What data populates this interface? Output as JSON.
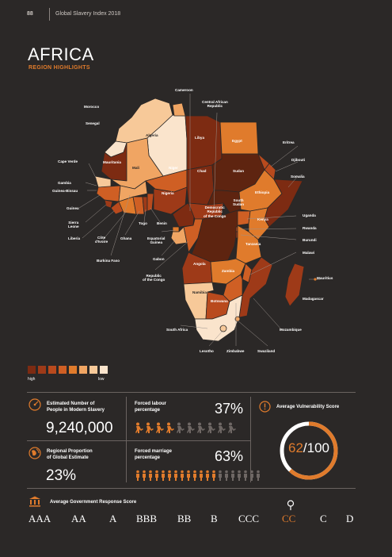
{
  "header": {
    "page_number": "88",
    "publication": "Global Slavery Index 2018"
  },
  "title": "AFRICA",
  "subtitle": "REGION HIGHLIGHTS",
  "legend": {
    "colors": [
      "#7d2b12",
      "#9e3a18",
      "#b94a1d",
      "#cf5f24",
      "#e07b2c",
      "#f0a563",
      "#f7c999",
      "#fae4cc"
    ],
    "high": "high",
    "low": "low"
  },
  "map_labels": {
    "cameroon": "Cameroon",
    "car": "Central African\nRepublic",
    "morocco": "Morocco",
    "senegal": "Senegal",
    "algeria": "Algeria",
    "libya": "Libya",
    "egypt": "Egypt",
    "eritrea": "Eritrea",
    "cape_verde": "Cape Verde",
    "mauritania": "Mauritania",
    "mali": "Mali",
    "niger": "Niger",
    "chad": "Chad",
    "sudan": "Sudan",
    "djibouti": "Djibouti",
    "somalia": "Somalia",
    "gambia": "Gambia",
    "guinea_bissau": "Guinea-Bissau",
    "nigeria": "Nigeria",
    "south_sudan": "South\nSudan",
    "ethiopia": "Ethiopia",
    "guinea": "Guinea",
    "kenya": "Kenya",
    "uganda": "Uganda",
    "sierra_leone": "Sierra\nLeone",
    "togo": "Togo",
    "benin": "Benin",
    "drc": "Democratic\nRepublic\nof the Congo",
    "rwanda": "Rwanda",
    "liberia": "Liberia",
    "cote": "Côte\nd'Ivoire",
    "ghana": "Ghana",
    "eq_guinea": "Equatorial\nGuinea",
    "tanzania": "Tanzania",
    "burundi": "Burundi",
    "burkina": "Burkina Faso",
    "gabon": "Gabon",
    "malawi": "Malawi",
    "angola": "Angola",
    "zambia": "Zambia",
    "roc": "Republic\nof the Congo",
    "mauritius": "Mauritius",
    "namibia": "Namibia",
    "madagascar": "Madagascar",
    "botswana": "Botswana",
    "south_africa": "South Africa",
    "mozambique": "Mozambique",
    "lesotho": "Lesotho",
    "zimbabwe": "Zimbabwe",
    "swaziland": "Swaziland"
  },
  "stats": {
    "estimated_label": "Estimated Number of\nPeople in Modern Slavery",
    "estimated_value": "9,240,000",
    "proportion_label": "Regional Proportion\nof Global Estimate",
    "proportion_value": "23%",
    "forced_labour_label": "Forced labour\npercentage",
    "forced_labour_value": "37%",
    "forced_labour_fraction": 0.37,
    "forced_marriage_label": "Forced marriage\npercentage",
    "forced_marriage_value": "63%",
    "forced_marriage_fraction": 0.63,
    "vulnerability_label": "Average Vulnerability Score",
    "vulnerability_score": "62",
    "vulnerability_max": "/100",
    "vulnerability_fraction": 0.62
  },
  "response": {
    "label": "Average Government Response Score",
    "grades": [
      "AAA",
      "AA",
      "A",
      "BBB",
      "BB",
      "B",
      "CCC",
      "CC",
      "C",
      "D"
    ],
    "selected": "CC"
  },
  "accent_color": "#e07b2c"
}
